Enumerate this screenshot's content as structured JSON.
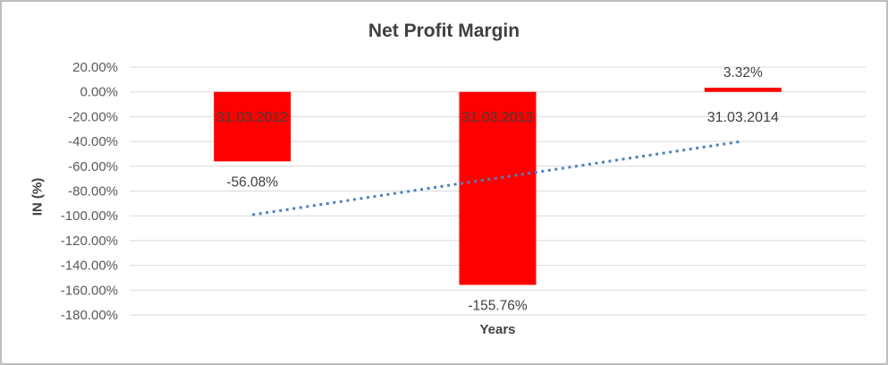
{
  "chart_data": {
    "type": "bar",
    "title": "Net Profit Margin",
    "xlabel": "Years",
    "ylabel": "IN (%)",
    "categories": [
      "31.03.2012",
      "31.03.2013",
      "31.03.2014"
    ],
    "values": [
      -56.08,
      -155.76,
      3.32
    ],
    "value_labels": [
      "-56.08%",
      "-155.76%",
      "3.32%"
    ],
    "ylim": [
      -180,
      20
    ],
    "ytick_step": 20,
    "yticks": [
      "20.00%",
      "0.00%",
      "-20.00%",
      "-40.00%",
      "-60.00%",
      "-80.00%",
      "-100.00%",
      "-120.00%",
      "-140.00%",
      "-160.00%",
      "-180.00%"
    ],
    "grid": true,
    "legend_position": "none",
    "bar_color": "#ff0000",
    "grid_color": "#d9d9d9",
    "tick_text_color": "#595959",
    "label_text_color": "#404040",
    "trendline": {
      "type": "linear",
      "style": "dotted",
      "color": "#4e81bd",
      "start_value": -99.2,
      "end_value": -39.8
    }
  }
}
